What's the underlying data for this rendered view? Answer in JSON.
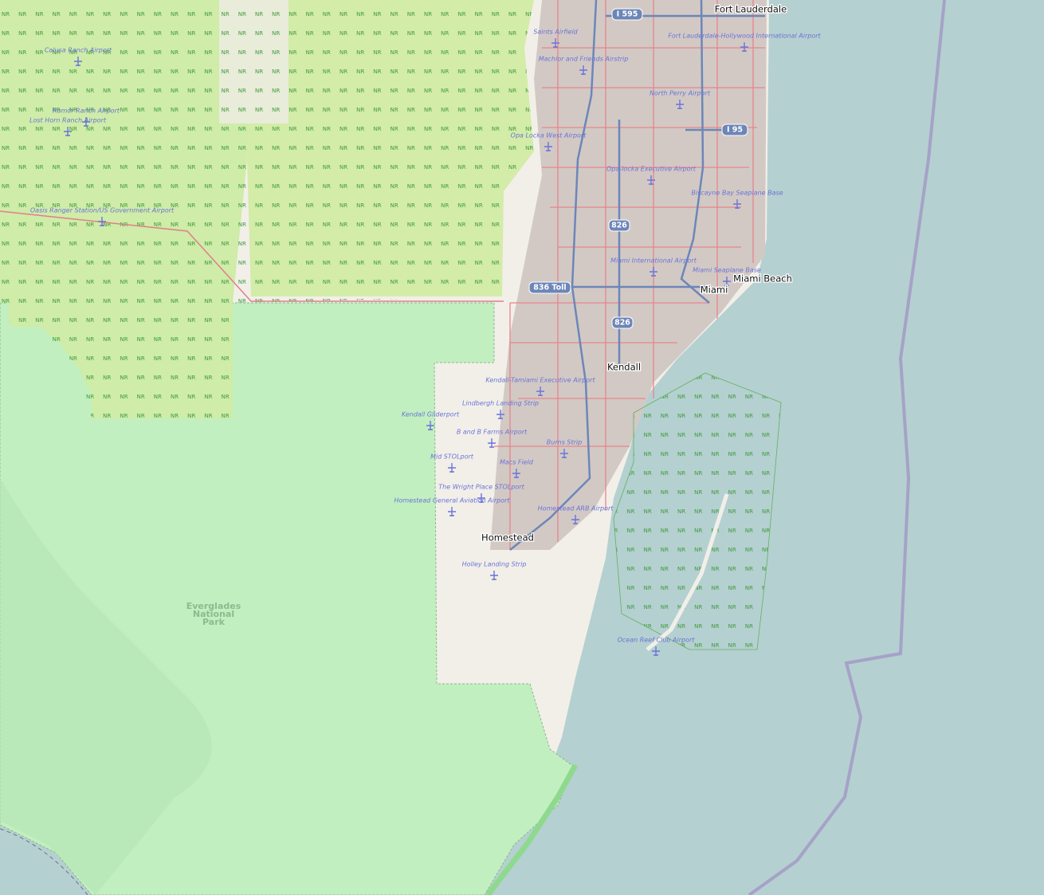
{
  "map": {
    "nr_marker": "NR",
    "park_label_lines": [
      "Everglades",
      "National",
      "Park"
    ],
    "places": [
      "Fort Lauderdale",
      "Miami Beach",
      "Miami",
      "Kendall",
      "Homestead"
    ],
    "road_shields": [
      "I 595",
      "I 95",
      "826",
      "836 Toll",
      "826"
    ],
    "airports": [
      "Saints Airfield",
      "Calusa Ranch Airport",
      "Machior and Friends Airstrip",
      "Fort Lauderdale-Hollywood International Airport",
      "North Perry Airport",
      "Romor Ranch Airport",
      "Lost Horn Ranch Airport",
      "Opa Locka West Airport",
      "Opa-locka Executive Airport",
      "Biscayne Bay Seaplane Base",
      "Oasis Ranger Station/US Government Airport",
      "Miami International Airport",
      "Miami Seaplane Base",
      "Kendall-Tamiami Executive Airport",
      "Lindbergh Landing Strip",
      "Kendall Gliderport",
      "B and B Farms Airport",
      "Burns Strip",
      "Mid STOLport",
      "Macs Field",
      "The Wright Place STOLport",
      "Homestead General Aviation Airport",
      "Homestead ARB Airport",
      "Holley Landing Strip",
      "Ocean Reef Club Airport"
    ]
  }
}
